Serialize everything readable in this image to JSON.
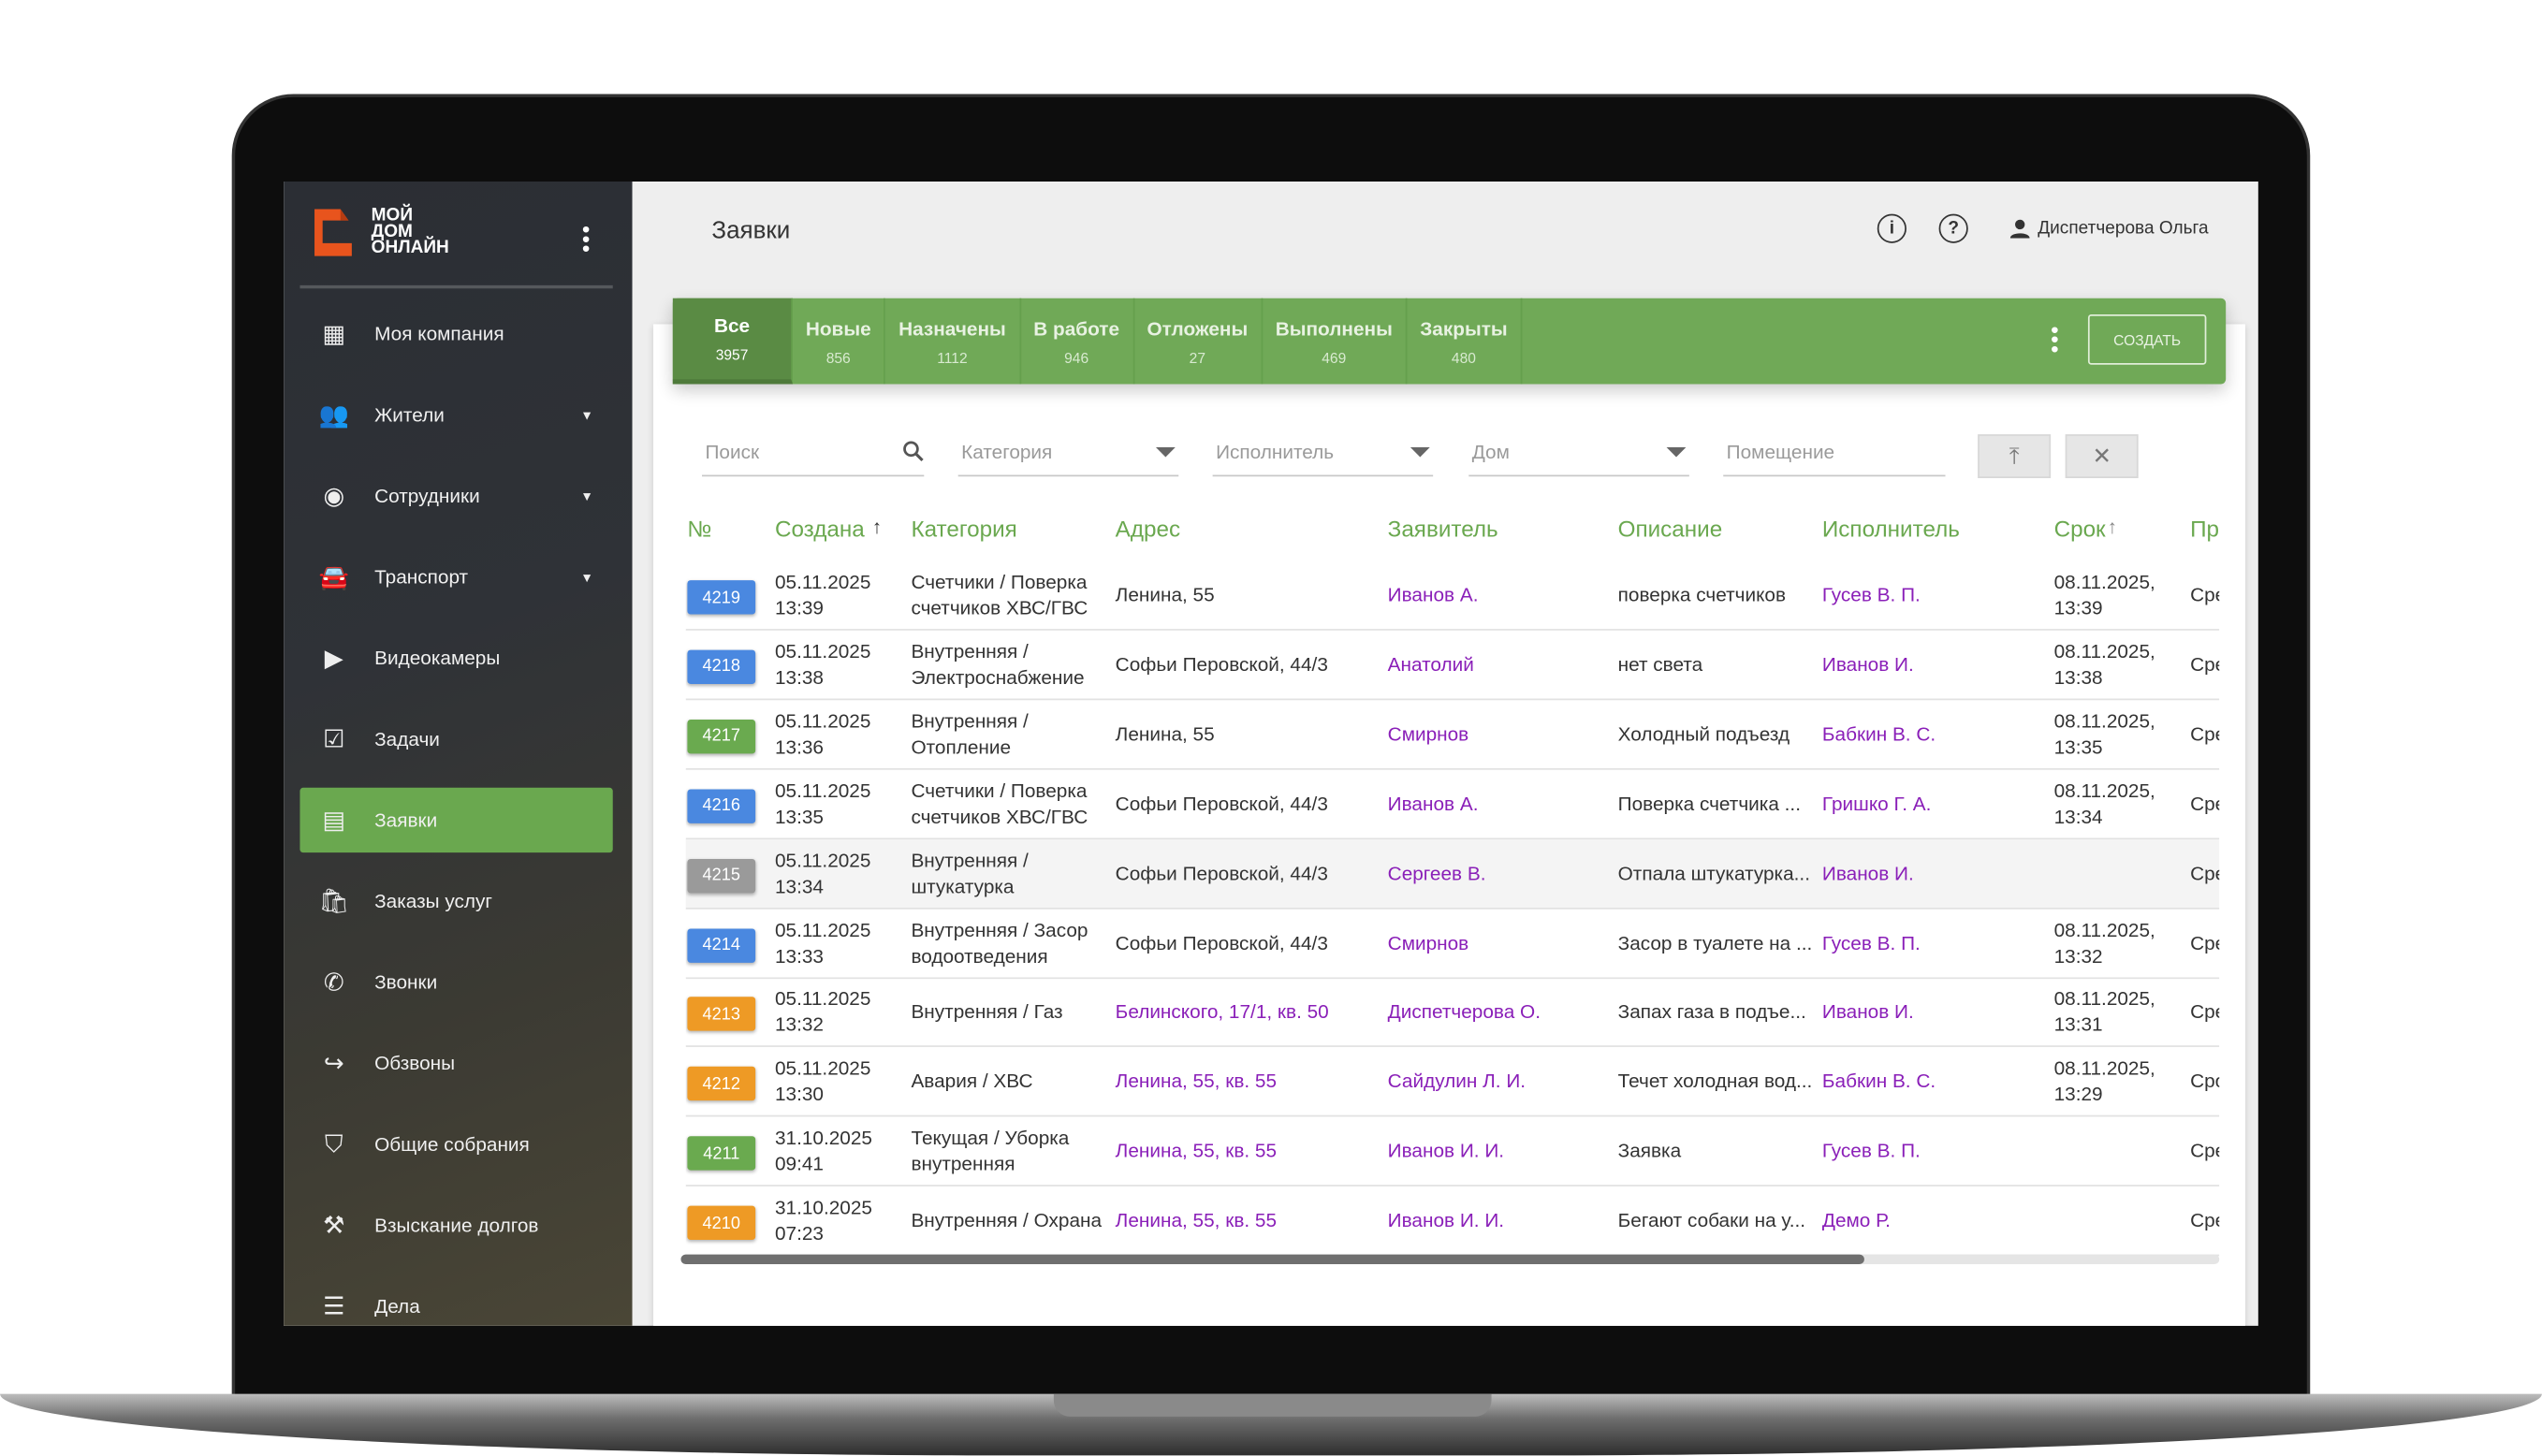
{
  "colors": {
    "accent": "#6aa84f",
    "tab_bar": "#70a957",
    "link": "#8a1fb8",
    "badge_blue": "#4a88e0",
    "badge_green": "#6aaa4f",
    "badge_orange": "#ee9a25",
    "badge_gray": "#9a9a9a",
    "logo": "#e8541d"
  },
  "logo": {
    "line1": "МОЙ",
    "line2": "ДОМ",
    "line3": "ОНЛАЙН"
  },
  "sidebar": {
    "items": [
      {
        "label": "Моя компания",
        "icon": "dashboard-icon",
        "caret": false
      },
      {
        "label": "Жители",
        "icon": "people-icon",
        "caret": true
      },
      {
        "label": "Сотрудники",
        "icon": "account-circle-icon",
        "caret": true
      },
      {
        "label": "Транспорт",
        "icon": "car-icon",
        "caret": true
      },
      {
        "label": "Видеокамеры",
        "icon": "videocam-icon",
        "caret": false
      },
      {
        "label": "Задачи",
        "icon": "checkbox-icon",
        "caret": false
      },
      {
        "label": "Заявки",
        "icon": "calendar-icon",
        "caret": false,
        "active": true
      },
      {
        "label": "Заказы услуг",
        "icon": "shopping-bag-icon",
        "caret": false
      },
      {
        "label": "Звонки",
        "icon": "phone-icon",
        "caret": false
      },
      {
        "label": "Обзвоны",
        "icon": "phone-forward-icon",
        "caret": false
      },
      {
        "label": "Общие собрания",
        "icon": "vote-icon",
        "caret": false
      },
      {
        "label": "Взыскание долгов",
        "icon": "gavel-icon",
        "caret": false
      },
      {
        "label": "Дела",
        "icon": "checklist-icon",
        "caret": false
      }
    ]
  },
  "header": {
    "title": "Заявки",
    "user": "Диспетчерова Ольга"
  },
  "tabs": [
    {
      "label": "Все",
      "count": "3957",
      "active": true
    },
    {
      "label": "Новые",
      "count": "856"
    },
    {
      "label": "Назначены",
      "count": "1112"
    },
    {
      "label": "В работе",
      "count": "946"
    },
    {
      "label": "Отложены",
      "count": "27"
    },
    {
      "label": "Выполнены",
      "count": "469"
    },
    {
      "label": "Закрыты",
      "count": "480"
    }
  ],
  "create_label": "СОЗДАТЬ",
  "filters": {
    "search": "Поиск",
    "category": "Категория",
    "executor": "Исполнитель",
    "house": "Дом",
    "room": "Помещение"
  },
  "columns": [
    "№",
    "Создана",
    "Категория",
    "Адрес",
    "Заявитель",
    "Описание",
    "Исполнитель",
    "Срок",
    "Пр"
  ],
  "sort_arrow": "↑",
  "rows": [
    {
      "id": "4219",
      "status": "blue",
      "created": [
        "05.11.2025",
        "13:39"
      ],
      "category": [
        "Счетчики / Поверка",
        "счетчиков ХВС/ГВС"
      ],
      "address": "Ленина, 55",
      "address_link": false,
      "applicant": "Иванов А.",
      "description": "поверка счетчиков",
      "executor": "Гусев В. П.",
      "deadline": [
        "08.11.2025,",
        "13:39"
      ],
      "priority": "Сре"
    },
    {
      "id": "4218",
      "status": "blue",
      "created": [
        "05.11.2025",
        "13:38"
      ],
      "category": [
        "Внутренняя /",
        "Электроснабжение"
      ],
      "address": "Софьи Перовской, 44/3",
      "address_link": false,
      "applicant": "Анатолий",
      "description": "нет света",
      "executor": "Иванов И.",
      "deadline": [
        "08.11.2025,",
        "13:38"
      ],
      "priority": "Сре"
    },
    {
      "id": "4217",
      "status": "green",
      "created": [
        "05.11.2025",
        "13:36"
      ],
      "category": [
        "Внутренняя /",
        "Отопление"
      ],
      "address": "Ленина, 55",
      "address_link": false,
      "applicant": "Смирнов",
      "description": "Холодный подъезд",
      "executor": "Бабкин В. С.",
      "deadline": [
        "08.11.2025,",
        "13:35"
      ],
      "priority": "Сре"
    },
    {
      "id": "4216",
      "status": "blue",
      "created": [
        "05.11.2025",
        "13:35"
      ],
      "category": [
        "Счетчики / Поверка",
        "счетчиков ХВС/ГВС"
      ],
      "address": "Софьи Перовской, 44/3",
      "address_link": false,
      "applicant": "Иванов А.",
      "description": "Поверка счетчика ...",
      "executor": "Гришко Г. А.",
      "deadline": [
        "08.11.2025,",
        "13:34"
      ],
      "priority": "Сре"
    },
    {
      "id": "4215",
      "status": "gray",
      "highlight": true,
      "created": [
        "05.11.2025",
        "13:34"
      ],
      "category": [
        "Внутренняя /",
        "штукатурка"
      ],
      "address": "Софьи Перовской, 44/3",
      "address_link": false,
      "applicant": "Сергеев В.",
      "description": "Отпала штукатурка...",
      "executor": "Иванов И.",
      "deadline": [
        "",
        ""
      ],
      "priority": "Сре"
    },
    {
      "id": "4214",
      "status": "blue",
      "created": [
        "05.11.2025",
        "13:33"
      ],
      "category": [
        "Внутренняя / Засор",
        "водоотведения"
      ],
      "address": "Софьи Перовской, 44/3",
      "address_link": false,
      "applicant": "Смирнов",
      "description": "Засор в туалете на ...",
      "executor": "Гусев В. П.",
      "deadline": [
        "08.11.2025,",
        "13:32"
      ],
      "priority": "Сре"
    },
    {
      "id": "4213",
      "status": "orange",
      "created": [
        "05.11.2025",
        "13:32"
      ],
      "category": [
        "Внутренняя / Газ",
        ""
      ],
      "address": "Белинского, 17/1, кв. 50",
      "address_link": true,
      "applicant": "Диспетчерова О.",
      "description": "Запах газа в подъе...",
      "executor": "Иванов И.",
      "deadline": [
        "08.11.2025,",
        "13:31"
      ],
      "priority": "Сре"
    },
    {
      "id": "4212",
      "status": "orange",
      "created": [
        "05.11.2025",
        "13:30"
      ],
      "category": [
        "Авария / ХВС",
        ""
      ],
      "address": "Ленина, 55, кв. 55",
      "address_link": true,
      "applicant": "Сайдулин Л. И.",
      "description": "Течет холодная вод...",
      "executor": "Бабкин В. С.",
      "deadline": [
        "08.11.2025,",
        "13:29"
      ],
      "priority": "Сро"
    },
    {
      "id": "4211",
      "status": "green",
      "created": [
        "31.10.2025",
        "09:41"
      ],
      "category": [
        "Текущая / Уборка",
        "внутренняя"
      ],
      "address": "Ленина, 55, кв. 55",
      "address_link": true,
      "applicant": "Иванов И. И.",
      "description": "Заявка",
      "executor": "Гусев В. П.",
      "deadline": [
        "",
        ""
      ],
      "priority": "Сре"
    },
    {
      "id": "4210",
      "status": "orange",
      "created": [
        "31.10.2025",
        "07:23"
      ],
      "category": [
        "Внутренняя / Охрана",
        ""
      ],
      "address": "Ленина, 55, кв. 55",
      "address_link": true,
      "applicant": "Иванов И. И.",
      "description": "Бегают собаки на у...",
      "executor": "Демо Р.",
      "deadline": [
        "",
        ""
      ],
      "priority": "Сре"
    }
  ]
}
